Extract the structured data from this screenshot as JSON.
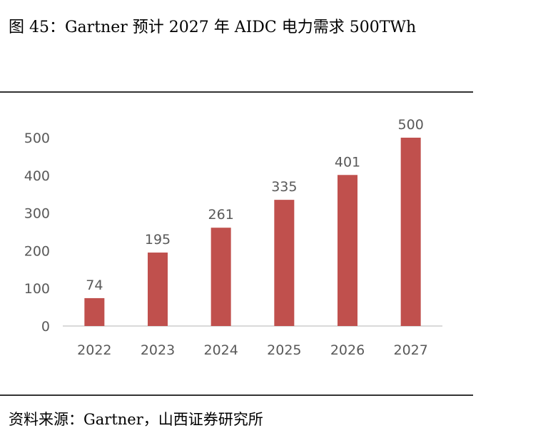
{
  "title": "图 45：Gartner 预计 2027 年 AIDC 电力需求 500TWh",
  "source": "资料来源：Gartner，山西证券研究所",
  "chart_data": {
    "type": "bar",
    "title": "Gartner 预计 2027 年 AIDC 电力需求 500TWh",
    "categories": [
      "2022",
      "2023",
      "2024",
      "2025",
      "2026",
      "2027"
    ],
    "values": [
      74,
      195,
      261,
      335,
      401,
      500
    ],
    "yticks": [
      0,
      100,
      200,
      300,
      400,
      500
    ],
    "ylim": [
      0,
      500
    ],
    "xlabel": "",
    "ylabel": "",
    "grid": false,
    "bar_color": "#c0504d"
  }
}
